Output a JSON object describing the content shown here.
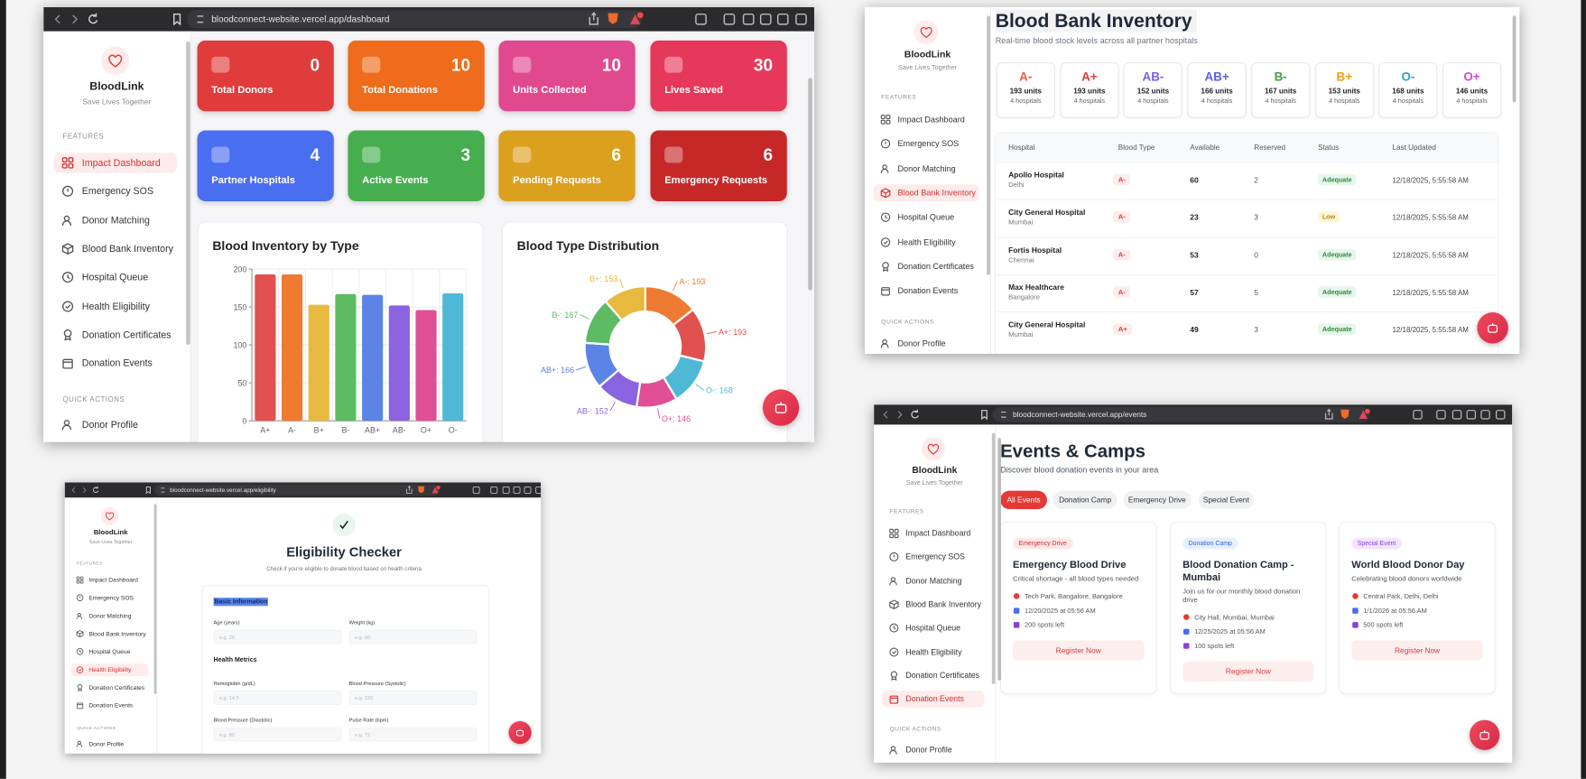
{
  "sidebar": {
    "brand": "BloodLink",
    "tagline": "Save Lives Together",
    "features_heading": "FEATURES",
    "items": [
      "Impact Dashboard",
      "Emergency SOS",
      "Donor Matching",
      "Blood Bank Inventory",
      "Hospital Queue",
      "Health Eligibility",
      "Donation Certificates",
      "Donation Events"
    ],
    "quick_heading": "QUICK ACTIONS",
    "quick_items": [
      "Donor Profile"
    ]
  },
  "dashboard": {
    "url": "bloodconnect-website.vercel.app/dashboard",
    "stats": [
      {
        "label": "Total Donors",
        "value": 0,
        "color": "#e03c3c"
      },
      {
        "label": "Total Donations",
        "value": 10,
        "color": "#ee6c1b"
      },
      {
        "label": "Units Collected",
        "value": 10,
        "color": "#e1498f"
      },
      {
        "label": "Lives Saved",
        "value": 30,
        "color": "#e6385a"
      },
      {
        "label": "Partner Hospitals",
        "value": 4,
        "color": "#4a6ef0"
      },
      {
        "label": "Active Events",
        "value": 3,
        "color": "#46ae4f"
      },
      {
        "label": "Pending Requests",
        "value": 6,
        "color": "#dca01f"
      },
      {
        "label": "Emergency Requests",
        "value": 6,
        "color": "#c62828"
      }
    ]
  },
  "chart_data": [
    {
      "type": "bar",
      "title": "Blood Inventory by Type",
      "categories": [
        "A+",
        "A-",
        "B+",
        "B-",
        "AB+",
        "AB-",
        "O+",
        "O-"
      ],
      "values": [
        193,
        193,
        153,
        167,
        166,
        152,
        146,
        168
      ],
      "colors": [
        "#e0514f",
        "#ef7b32",
        "#e7b93f",
        "#5dbb63",
        "#5b84e6",
        "#8a63e0",
        "#e04f96",
        "#4fb8d6"
      ],
      "ylim": [
        0,
        200
      ],
      "yticks": [
        0,
        50,
        100,
        150,
        200
      ],
      "grid": true
    },
    {
      "type": "doughnut",
      "title": "Blood Type Distribution",
      "values": [
        193,
        193,
        168,
        146,
        152,
        166,
        167,
        153
      ],
      "value_labels": [
        "A-: 193",
        "A+: 193",
        "O-: 168",
        "O+: 146",
        "AB-: 152",
        "AB+: 166",
        "B-: 167",
        "B+: 153"
      ],
      "colors": [
        "#ef7b32",
        "#e0514f",
        "#4fb8d6",
        "#e04f96",
        "#8a63e0",
        "#5b84e6",
        "#5dbb63",
        "#e7b93f"
      ]
    }
  ],
  "inventory": {
    "title": "Blood Bank Inventory",
    "subtitle": "Real-time blood stock levels across all partner hospitals",
    "summary": [
      {
        "type": "A-",
        "units": "193 units",
        "hospitals": "4 hospitals",
        "color": "#ef5a3a"
      },
      {
        "type": "A+",
        "units": "193 units",
        "hospitals": "4 hospitals",
        "color": "#e53935"
      },
      {
        "type": "AB-",
        "units": "152 units",
        "hospitals": "4 hospitals",
        "color": "#7c5cf0"
      },
      {
        "type": "AB+",
        "units": "166 units",
        "hospitals": "4 hospitals",
        "color": "#5b5fe6"
      },
      {
        "type": "B-",
        "units": "167 units",
        "hospitals": "4 hospitals",
        "color": "#43a047"
      },
      {
        "type": "B+",
        "units": "153 units",
        "hospitals": "4 hospitals",
        "color": "#f59e0b"
      },
      {
        "type": "O-",
        "units": "168 units",
        "hospitals": "4 hospitals",
        "color": "#26a5c5"
      },
      {
        "type": "O+",
        "units": "146 units",
        "hospitals": "4 hospitals",
        "color": "#d14bd6"
      }
    ],
    "table": {
      "columns": [
        "Hospital",
        "Blood Type",
        "Available",
        "Reserved",
        "Status",
        "Last Updated"
      ],
      "rows": [
        {
          "hospital": "Apollo Hospital",
          "city": "Delhi",
          "blood_type": "A-",
          "available": 60,
          "reserved": 2,
          "status": "Adequate",
          "updated": "12/18/2025, 5:55:58 AM"
        },
        {
          "hospital": "City General Hospital",
          "city": "Mumbai",
          "blood_type": "A-",
          "available": 23,
          "reserved": 3,
          "status": "Low",
          "updated": "12/18/2025, 5:55:58 AM"
        },
        {
          "hospital": "Fortis Hospital",
          "city": "Chennai",
          "blood_type": "A-",
          "available": 53,
          "reserved": 0,
          "status": "Adequate",
          "updated": "12/18/2025, 5:55:58 AM"
        },
        {
          "hospital": "Max Healthcare",
          "city": "Bangalore",
          "blood_type": "A-",
          "available": 57,
          "reserved": 5,
          "status": "Adequate",
          "updated": "12/18/2025, 5:55:58 AM"
        },
        {
          "hospital": "City General Hospital",
          "city": "Mumbai",
          "blood_type": "A+",
          "available": 49,
          "reserved": 3,
          "status": "Adequate",
          "updated": "12/18/2025, 5:55:58 AM"
        }
      ]
    }
  },
  "eligibility": {
    "url": "bloodconnect-website.vercel.app/eligibility",
    "title": "Eligibility Checker",
    "subtitle": "Check if you're eligible to donate blood based on health criteria",
    "sections": [
      {
        "heading": "Basic Information",
        "fields": [
          {
            "label": "Age (years)",
            "placeholder": "e.g. 25"
          },
          {
            "label": "Weight (kg)",
            "placeholder": "e.g. 60"
          }
        ]
      },
      {
        "heading": "Health Metrics",
        "fields": [
          {
            "label": "Hemoglobin (g/dL)",
            "placeholder": "e.g. 14.5"
          },
          {
            "label": "Blood Pressure (Systolic)",
            "placeholder": "e.g. 120"
          },
          {
            "label": "Blood Pressure (Diastolic)",
            "placeholder": "e.g. 80"
          },
          {
            "label": "Pulse Rate (bpm)",
            "placeholder": "e.g. 72"
          }
        ]
      }
    ]
  },
  "events": {
    "url": "bloodconnect-website.vercel.app/events",
    "title": "Events & Camps",
    "subtitle": "Discover blood donation events in your area",
    "filters": [
      "All Events",
      "Donation Camp",
      "Emergency Drive",
      "Special Event"
    ],
    "cards": [
      {
        "tag": "Emergency Drive",
        "tag_color": "#d32f2f",
        "tag_bg": "#fde8e8",
        "title": "Emergency Blood Drive",
        "description": "Critical shortage - all blood types needed",
        "location": "Tech Park, Bangalore, Bangalore",
        "date": "12/20/2025 at 05:56 AM",
        "spots": "200 spots left",
        "button": "Register Now"
      },
      {
        "tag": "Donation Camp",
        "tag_color": "#2f62d8",
        "tag_bg": "#e6efff",
        "title": "Blood Donation Camp - Mumbai",
        "description": "Join us for our monthly blood donation drive",
        "location": "City Hall, Mumbai, Mumbai",
        "date": "12/25/2025 at 05:56 AM",
        "spots": "100 spots left",
        "button": "Register Now"
      },
      {
        "tag": "Special Event",
        "tag_color": "#8a3fd8",
        "tag_bg": "#f1e6ff",
        "title": "World Blood Donor Day",
        "description": "Celebrating blood donors worldwide",
        "location": "Central Park, Delhi, Delhi",
        "date": "1/1/2026 at 05:56 AM",
        "spots": "500 spots left",
        "button": "Register Now"
      }
    ]
  }
}
